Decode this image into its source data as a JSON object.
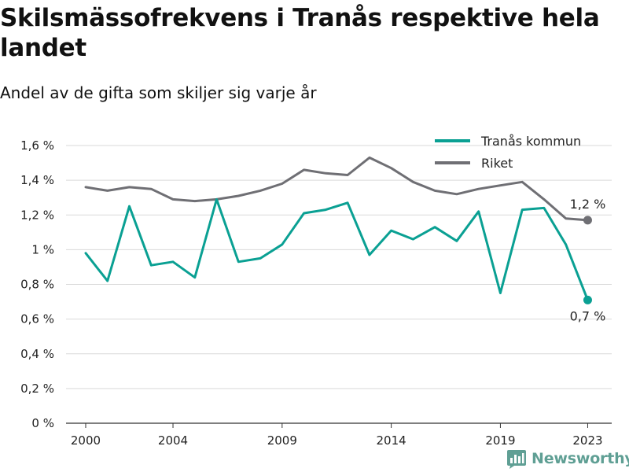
{
  "header": {
    "title": "Skilsmässofrekvens i Tranås respektive hela landet",
    "subtitle": "Andel av de gifta som skiljer sig varje år"
  },
  "branding": {
    "logo_text": "Newsworthy",
    "logo_color": "#5f9f94"
  },
  "chart_data": {
    "type": "line",
    "title": "Skilsmässofrekvens i Tranås respektive hela landet",
    "subtitle": "Andel av de gifta som skiljer sig varje år",
    "x": [
      2000,
      2001,
      2002,
      2003,
      2004,
      2005,
      2006,
      2007,
      2008,
      2009,
      2010,
      2011,
      2012,
      2013,
      2014,
      2015,
      2016,
      2017,
      2018,
      2019,
      2020,
      2021,
      2022,
      2023
    ],
    "xlim": [
      1999.1,
      2024.1
    ],
    "x_ticks": [
      2000,
      2004,
      2009,
      2014,
      2019,
      2023
    ],
    "x_tick_labels": [
      "2000",
      "2004",
      "2009",
      "2014",
      "2019",
      "2023"
    ],
    "ylim": [
      0,
      1.6
    ],
    "y_ticks": [
      0,
      0.2,
      0.4,
      0.6,
      0.8,
      1.0,
      1.2,
      1.4,
      1.6
    ],
    "y_tick_labels": [
      "0 %",
      "0,2 %",
      "0,4 %",
      "0,6 %",
      "0,8 %",
      "1 %",
      "1,2 %",
      "1,4 %",
      "1,6 %"
    ],
    "grid": true,
    "legend_position": "top-right",
    "series": [
      {
        "name": "Tranås kommun",
        "color": "#0aa093",
        "values": [
          0.98,
          0.82,
          1.25,
          0.91,
          0.93,
          0.84,
          1.29,
          0.93,
          0.95,
          1.03,
          1.21,
          1.23,
          1.27,
          0.97,
          1.11,
          1.06,
          1.13,
          1.05,
          1.22,
          0.75,
          1.23,
          1.24,
          1.03,
          0.71
        ],
        "end_label": "0,7 %"
      },
      {
        "name": "Riket",
        "color": "#6f6f74",
        "values": [
          1.36,
          1.34,
          1.36,
          1.35,
          1.29,
          1.28,
          1.29,
          1.31,
          1.34,
          1.38,
          1.46,
          1.44,
          1.43,
          1.53,
          1.47,
          1.39,
          1.34,
          1.32,
          1.35,
          1.37,
          1.39,
          1.29,
          1.18,
          1.17
        ],
        "end_label": "1,2 %"
      }
    ]
  }
}
